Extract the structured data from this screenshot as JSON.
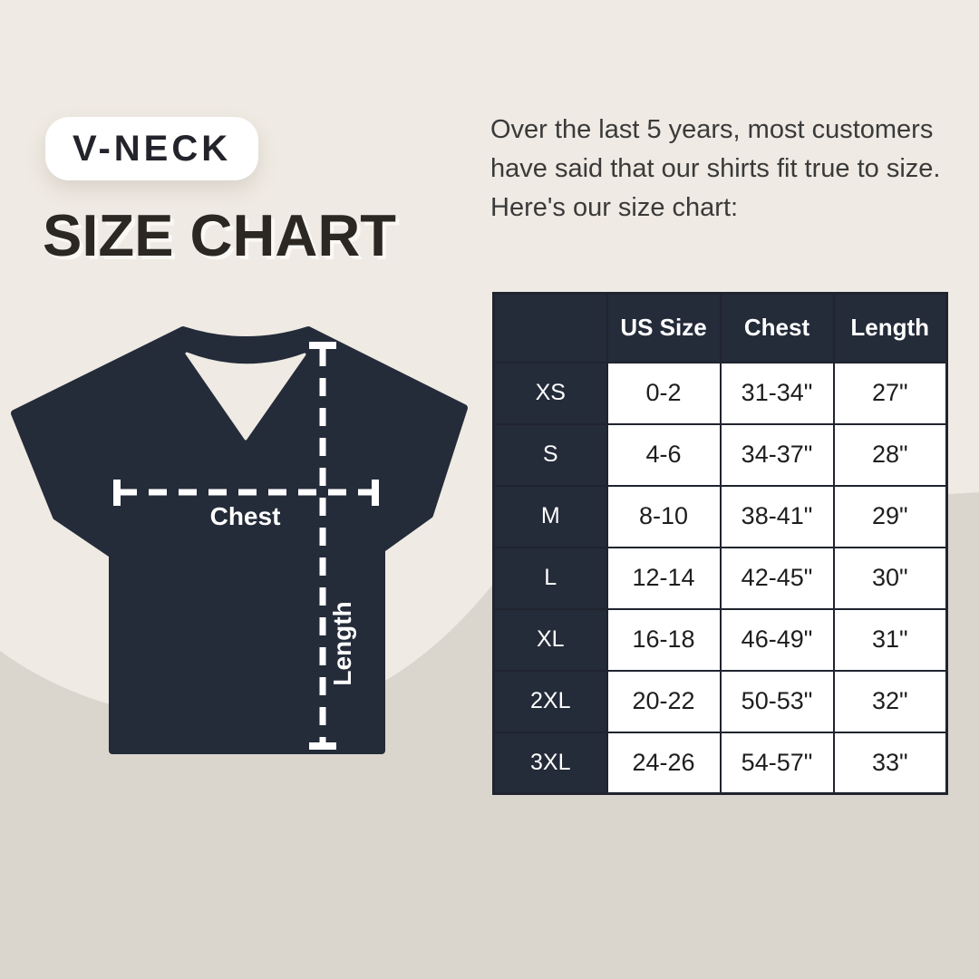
{
  "badge": {
    "label": "V-NECK"
  },
  "title": "SIZE CHART",
  "intro": "Over the last 5 years, most customers have said that our shirts fit true to size. Here's our size chart:",
  "diagram": {
    "shirt": "v-neck-tshirt",
    "chest_label": "Chest",
    "length_label": "Length"
  },
  "colors": {
    "background_light": "#EFEAE3",
    "background_dark": "#DAD5CD",
    "navy": "#242B39",
    "table_border": "#20242F",
    "text_dark": "#2B2722",
    "white": "#FFFFFF"
  },
  "chart_data": {
    "type": "table",
    "columns": [
      "",
      "US Size",
      "Chest",
      "Length"
    ],
    "rows": [
      [
        "XS",
        "0-2",
        "31-34\"",
        "27\""
      ],
      [
        "S",
        "4-6",
        "34-37\"",
        "28\""
      ],
      [
        "M",
        "8-10",
        "38-41\"",
        "29\""
      ],
      [
        "L",
        "12-14",
        "42-45\"",
        "30\""
      ],
      [
        "XL",
        "16-18",
        "46-49\"",
        "31\""
      ],
      [
        "2XL",
        "20-22",
        "50-53\"",
        "32\""
      ],
      [
        "3XL",
        "24-26",
        "54-57\"",
        "33\""
      ]
    ]
  }
}
